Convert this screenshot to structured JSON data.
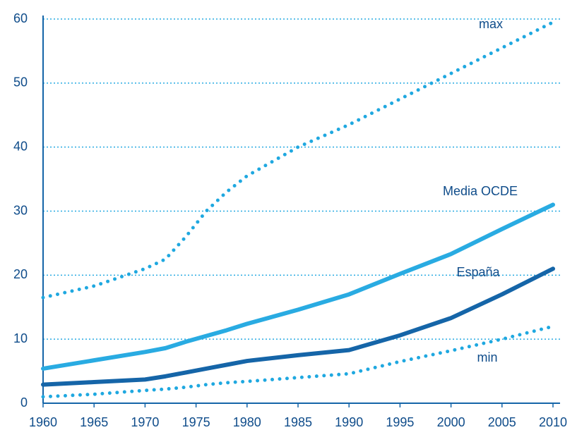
{
  "chart_data": {
    "type": "line",
    "x": [
      1960,
      1965,
      1970,
      1972,
      1974,
      1976,
      1978,
      1980,
      1985,
      1990,
      1995,
      2000,
      2005,
      2010
    ],
    "series": [
      {
        "name": "max",
        "color": "#1fa8e0",
        "style": "dotted",
        "values": [
          16.5,
          18.3,
          21,
          22.5,
          26,
          30,
          33,
          35.5,
          40,
          43.5,
          47.5,
          51.5,
          55.5,
          59.5
        ]
      },
      {
        "name": "Media OCDE",
        "color": "#29abe2",
        "style": "solid",
        "values": [
          5.4,
          6.7,
          8,
          8.6,
          9.6,
          10.5,
          11.4,
          12.4,
          14.6,
          17,
          20.2,
          23.3,
          27.2,
          31
        ]
      },
      {
        "name": "España",
        "color": "#1565a8",
        "style": "solid",
        "values": [
          2.9,
          3.3,
          3.7,
          4.2,
          4.8,
          5.4,
          6,
          6.6,
          7.5,
          8.3,
          10.6,
          13.3,
          17,
          21
        ]
      },
      {
        "name": "min",
        "color": "#1fa8e0",
        "style": "dotted",
        "values": [
          1,
          1.4,
          2,
          2.2,
          2.5,
          2.9,
          3.2,
          3.4,
          4,
          4.6,
          6.5,
          8.2,
          10,
          12
        ]
      }
    ],
    "xlim": [
      1960,
      2010
    ],
    "xticks": [
      1960,
      1965,
      1970,
      1975,
      1980,
      1985,
      1990,
      1995,
      2000,
      2005,
      2010
    ],
    "ylim": [
      0,
      60
    ],
    "yticks": [
      0,
      10,
      20,
      30,
      40,
      50,
      60
    ],
    "grid": true
  }
}
